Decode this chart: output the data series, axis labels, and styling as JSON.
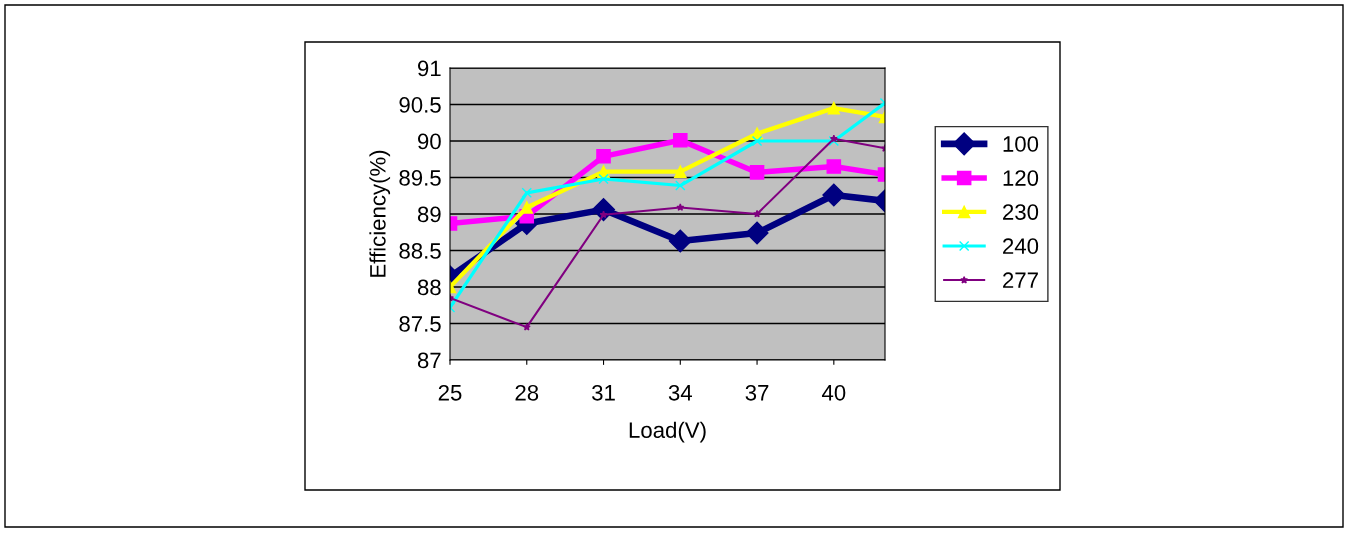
{
  "chart_data": {
    "type": "line",
    "xlabel": "Load(V)",
    "ylabel": "Efficiency(%)",
    "x": [
      25,
      28,
      31,
      34,
      37,
      40,
      42
    ],
    "xlim": [
      25,
      42
    ],
    "xticks": [
      25,
      28,
      31,
      34,
      37,
      40
    ],
    "ylim": [
      87,
      91
    ],
    "yticks": [
      87,
      87.5,
      88,
      88.5,
      89,
      89.5,
      90,
      90.5,
      91
    ],
    "grid": "y",
    "legend": "right",
    "series": [
      {
        "name": "100",
        "color": "#000080",
        "marker": "diamond",
        "values": [
          88.14,
          88.87,
          89.06,
          88.63,
          88.74,
          89.26,
          89.18
        ]
      },
      {
        "name": "120",
        "color": "#ff00ff",
        "marker": "square",
        "values": [
          88.87,
          88.97,
          89.79,
          90.01,
          89.57,
          89.65,
          89.54
        ]
      },
      {
        "name": "230",
        "color": "#ffff00",
        "marker": "triangle",
        "values": [
          88.0,
          89.09,
          89.58,
          89.58,
          90.1,
          90.45,
          90.33
        ]
      },
      {
        "name": "240",
        "color": "#00ffff",
        "marker": "cross",
        "values": [
          87.72,
          89.29,
          89.48,
          89.39,
          90.0,
          90.0,
          90.52
        ]
      },
      {
        "name": "277",
        "color": "#800080",
        "marker": "star",
        "values": [
          87.85,
          87.45,
          88.99,
          89.09,
          89.0,
          90.03,
          89.9
        ]
      }
    ]
  }
}
